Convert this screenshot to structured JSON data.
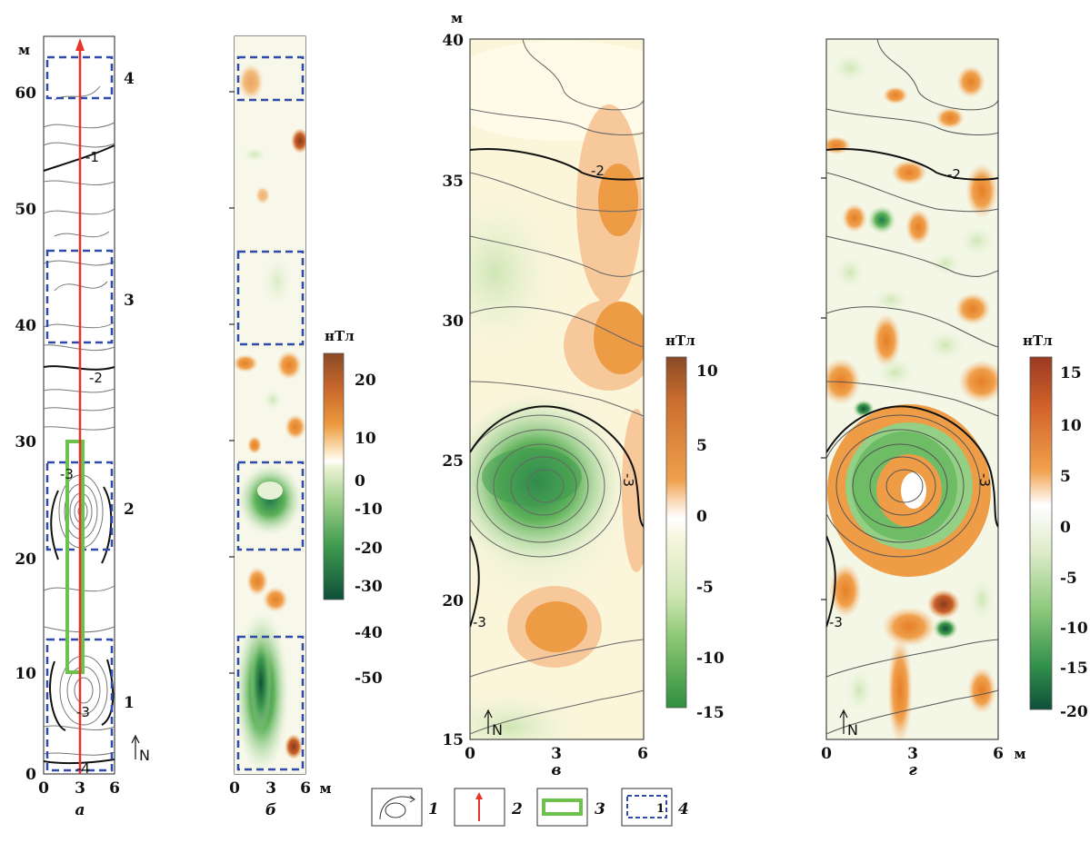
{
  "units": {
    "meter": "м",
    "nanotesla": "нТл"
  },
  "panels": [
    {
      "letter": "а",
      "x_ticks": [
        "0",
        "3",
        "6"
      ],
      "x_unit": "",
      "y_unit": "м",
      "y_ticks": [
        "0",
        "10",
        "20",
        "30",
        "40",
        "50",
        "60"
      ],
      "zone_labels": [
        "1",
        "2",
        "3",
        "4"
      ],
      "contour_labels": [
        "-1",
        "-2",
        "-3",
        "-3",
        "-4"
      ],
      "north": "N"
    },
    {
      "letter": "б",
      "x_ticks": [
        "0",
        "3",
        "6"
      ],
      "x_unit": "м"
    },
    {
      "letter": "в",
      "x_ticks": [
        "0",
        "3",
        "6"
      ],
      "y_unit": "м",
      "y_ticks": [
        "15",
        "20",
        "25",
        "30",
        "35",
        "40"
      ],
      "contour_labels": [
        "-2",
        "-3",
        "-3"
      ],
      "north": "N"
    },
    {
      "letter": "г",
      "x_ticks": [
        "0",
        "3",
        "6"
      ],
      "x_unit": "м",
      "contour_labels": [
        "-2",
        "-3",
        "-3"
      ],
      "north": "N"
    }
  ],
  "colorbars": [
    {
      "unit": "нТл",
      "ticks": [
        "20",
        "10",
        "0",
        "-10",
        "-20",
        "-30",
        "-40",
        "-50"
      ]
    },
    {
      "unit": "нТл",
      "ticks": [
        "10",
        "5",
        "0",
        "-5",
        "-10",
        "-15"
      ]
    },
    {
      "unit": "нТл",
      "ticks": [
        "15",
        "10",
        "5",
        "0",
        "-5",
        "-10",
        "-15",
        "-20"
      ]
    }
  ],
  "legend": {
    "items": [
      {
        "number": "1",
        "icon": "contour-lines-icon"
      },
      {
        "number": "2",
        "icon": "profile-arrow-icon"
      },
      {
        "number": "3",
        "icon": "green-rectangle-icon"
      },
      {
        "number": "4",
        "icon": "dashed-zone-icon",
        "inner": "1"
      }
    ]
  },
  "colors": {
    "profile_line": "#e8332a",
    "zone_dash": "#2f4aa8",
    "target_rect": "#6cc24a",
    "positive_max": "#8a4a26",
    "positive": "#e98a2e",
    "neutral": "#ffffff",
    "negative": "#5fb35a",
    "negative_max": "#0f4f3a"
  }
}
